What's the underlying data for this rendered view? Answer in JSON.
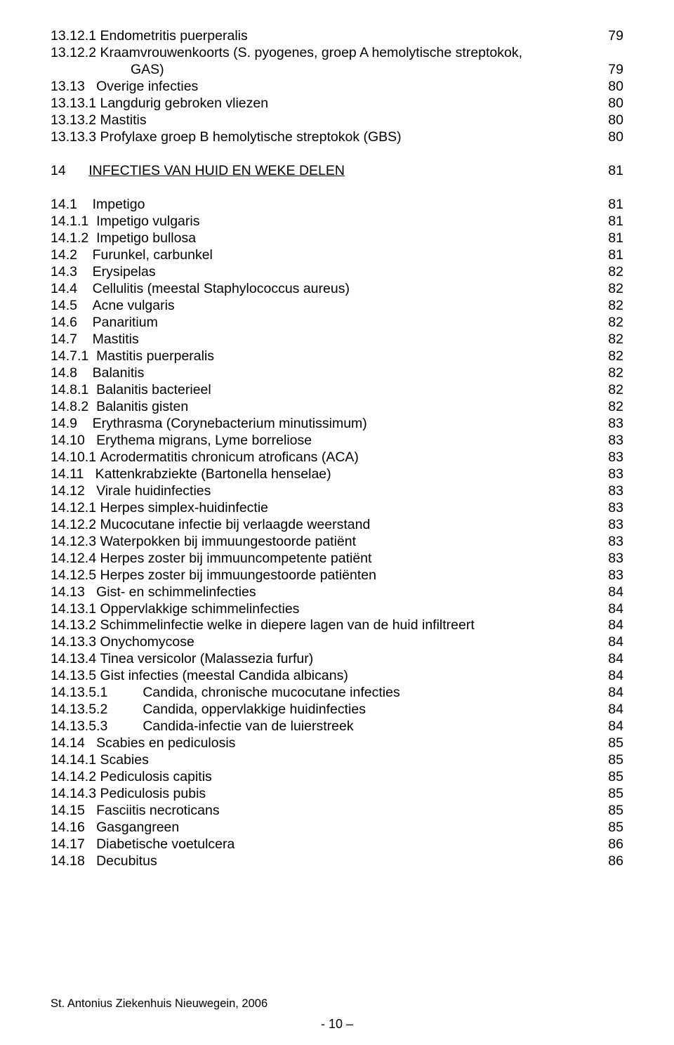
{
  "rows": [
    {
      "code": "13.12.1 ",
      "label": "Endometritis puerperalis",
      "page": "79"
    },
    {
      "code": "13.12.2 ",
      "label": "Kraamvrouwenkoorts (S. pyogenes, groep A hemolytische streptokok,",
      "page": ""
    },
    {
      "code": "",
      "label": "GAS)",
      "indent": "indent1",
      "page": "79"
    },
    {
      "code": "13.13   ",
      "label": "Overige infecties",
      "page": "80"
    },
    {
      "code": "13.13.1 ",
      "label": "Langdurig gebroken vliezen",
      "page": "80"
    },
    {
      "code": "13.13.2 ",
      "label": "Mastitis",
      "page": "80"
    },
    {
      "code": "13.13.3 ",
      "label": "Profylaxe groep B hemolytische streptokok (GBS)",
      "page": "80"
    },
    {
      "spacer": true
    },
    {
      "code": "14      ",
      "label": "INFECTIES VAN HUID EN WEKE DELEN",
      "section": true,
      "page": "81"
    },
    {
      "spacer": true
    },
    {
      "code": "14.1    ",
      "label": "Impetigo",
      "page": "81"
    },
    {
      "code": "14.1.1  ",
      "label": "Impetigo vulgaris",
      "page": "81"
    },
    {
      "code": "14.1.2  ",
      "label": "Impetigo bullosa",
      "page": "81"
    },
    {
      "code": "14.2    ",
      "label": "Furunkel, carbunkel",
      "page": "81"
    },
    {
      "code": "14.3    ",
      "label": "Erysipelas",
      "page": "82"
    },
    {
      "code": "14.4    ",
      "label": "Cellulitis (meestal Staphylococcus aureus)",
      "page": "82"
    },
    {
      "code": "14.5    ",
      "label": "Acne vulgaris",
      "page": "82"
    },
    {
      "code": "14.6    ",
      "label": "Panaritium",
      "page": "82"
    },
    {
      "code": "14.7    ",
      "label": "Mastitis",
      "page": "82"
    },
    {
      "code": "14.7.1  ",
      "label": "Mastitis puerperalis",
      "page": "82"
    },
    {
      "code": "14.8    ",
      "label": "Balanitis",
      "page": "82"
    },
    {
      "code": "14.8.1  ",
      "label": "Balanitis bacterieel",
      "page": "82"
    },
    {
      "code": "14.8.2  ",
      "label": "Balanitis gisten",
      "page": "82"
    },
    {
      "code": "14.9    ",
      "label": "Erythrasma (Corynebacterium minutissimum)",
      "page": "83"
    },
    {
      "code": "14.10   ",
      "label": "Erythema migrans, Lyme borreliose",
      "page": "83"
    },
    {
      "code": "14.10.1 ",
      "label": "Acrodermatitis chronicum atroficans (ACA)",
      "page": "83"
    },
    {
      "code": "14.11   ",
      "label": "Kattenkrabziekte (Bartonella henselae)",
      "page": "83"
    },
    {
      "code": "14.12   ",
      "label": "Virale huidinfecties",
      "page": "83"
    },
    {
      "code": "14.12.1 ",
      "label": "Herpes simplex-huidinfectie",
      "page": "83"
    },
    {
      "code": "14.12.2 ",
      "label": "Mucocutane infectie bij verlaagde weerstand",
      "page": "83"
    },
    {
      "code": "14.12.3 ",
      "label": "Waterpokken bij immuungestoorde patiënt",
      "page": "83"
    },
    {
      "code": "14.12.4 ",
      "label": "Herpes zoster bij immuuncompetente patiënt",
      "page": "83"
    },
    {
      "code": "14.12.5 ",
      "label": "Herpes zoster bij immuungestoorde patiënten",
      "page": "83"
    },
    {
      "code": "14.13   ",
      "label": "Gist- en schimmelinfecties",
      "page": "84"
    },
    {
      "code": "14.13.1 ",
      "label": "Oppervlakkige schimmelinfecties",
      "page": "84"
    },
    {
      "code": "14.13.2 ",
      "label": "Schimmelinfectie welke in diepere lagen van de huid infiltreert",
      "page": "84"
    },
    {
      "code": "14.13.3 ",
      "label": "Onychomycose",
      "page": "84"
    },
    {
      "code": "14.13.4 ",
      "label": "Tinea versicolor (Malassezia furfur)",
      "page": "84"
    },
    {
      "code": "14.13.5 ",
      "label": "Gist infecties (meestal Candida albicans)",
      "page": "84"
    },
    {
      "code": "14.13.5.1",
      "label": "Candida, chronische mucocutane infecties",
      "indent": "indent2",
      "page": "84"
    },
    {
      "code": "14.13.5.2",
      "label": "Candida, oppervlakkige huidinfecties",
      "indent": "indent2",
      "page": "84"
    },
    {
      "code": "14.13.5.3",
      "label": "Candida-infectie van de luierstreek",
      "indent": "indent2",
      "page": "84"
    },
    {
      "code": "14.14   ",
      "label": "Scabies en pediculosis",
      "page": "85"
    },
    {
      "code": "14.14.1 ",
      "label": "Scabies",
      "page": "85"
    },
    {
      "code": "14.14.2 ",
      "label": "Pediculosis capitis",
      "page": "85"
    },
    {
      "code": "14.14.3 ",
      "label": "Pediculosis pubis",
      "page": "85"
    },
    {
      "code": "14.15   ",
      "label": "Fasciitis necroticans",
      "page": "85"
    },
    {
      "code": "14.16   ",
      "label": "Gasgangreen",
      "page": "85"
    },
    {
      "code": "14.17   ",
      "label": "Diabetische voetulcera",
      "page": "86"
    },
    {
      "code": "14.18   ",
      "label": "Decubitus",
      "page": "86"
    }
  ],
  "footer_text": "St. Antonius Ziekenhuis Nieuwegein, 2006",
  "footer_page": "- 10 –"
}
